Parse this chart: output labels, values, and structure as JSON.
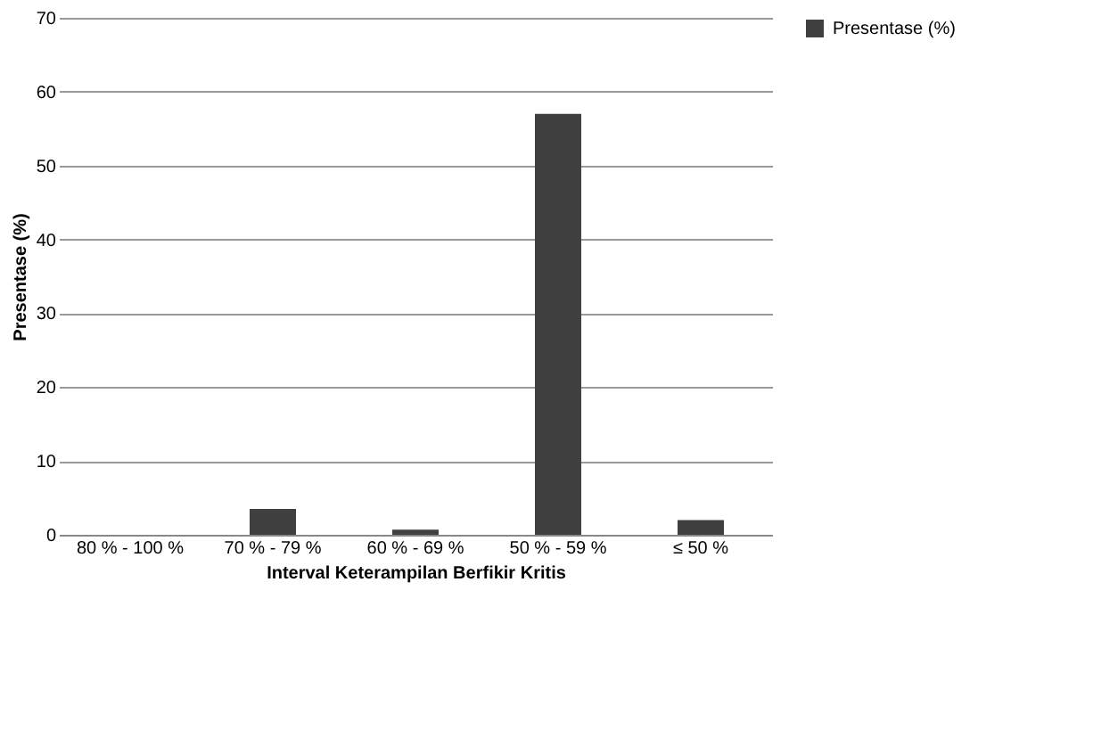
{
  "chart_data": {
    "type": "bar",
    "categories": [
      "80 % - 100 %",
      "70 % - 79 %",
      "60 % - 69 %",
      "50 % - 59 %",
      "≤ 50 %"
    ],
    "series": [
      {
        "name": "Presentase (%)",
        "color": "#404040",
        "values": [
          0,
          3.5,
          0.7,
          57,
          2
        ]
      }
    ],
    "xlabel": "Interval Keterampilan Berfikir Kritis",
    "ylabel": "Presentase (%)",
    "ylim": [
      0,
      70
    ],
    "yticks": [
      0,
      10,
      20,
      30,
      40,
      50,
      60,
      70
    ],
    "grid": "y",
    "legend": "right"
  }
}
